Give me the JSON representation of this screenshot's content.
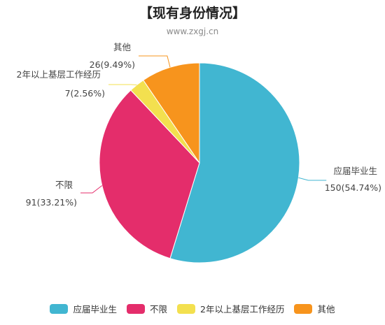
{
  "chart_data": {
    "type": "pie",
    "title": "【现有身份情况】",
    "subtitle": "www.zxgj.cn",
    "slices": [
      {
        "name": "应届毕业生",
        "value": 150,
        "percent": "54.74%",
        "label_value": "150(54.74%)",
        "color": "#41b6d1"
      },
      {
        "name": "不限",
        "value": 91,
        "percent": "33.21%",
        "label_value": "91(33.21%)",
        "color": "#e42d6b"
      },
      {
        "name": "2年以上基层工作经历",
        "value": 7,
        "percent": "2.56%",
        "label_value": "7(2.56%)",
        "color": "#f3e04f"
      },
      {
        "name": "其他",
        "value": 26,
        "percent": "9.49%",
        "label_value": "26(9.49%)",
        "color": "#f7941d"
      }
    ],
    "legend_position": "bottom"
  }
}
